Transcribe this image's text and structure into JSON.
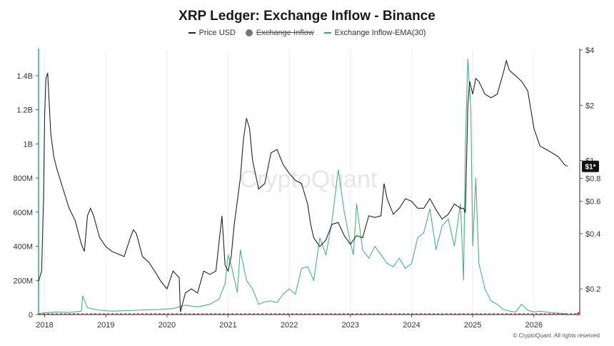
{
  "chart_data": {
    "type": "line",
    "title": "XRP Ledger: Exchange Inflow - Binance",
    "legend": [
      {
        "name": "Price USD",
        "color": "#222222",
        "marker": "line",
        "hidden": false
      },
      {
        "name": "Exchange Inflow",
        "color": "#777777",
        "marker": "dot",
        "hidden": true
      },
      {
        "name": "Exchange Inflow-EMA(30)",
        "color": "#3aa676",
        "marker": "line",
        "hidden": false
      }
    ],
    "x_ticks": [
      "2018",
      "2019",
      "2020",
      "2021",
      "2022",
      "2023",
      "2024",
      "2025",
      "2026"
    ],
    "x_range": [
      2017.9,
      2026.75
    ],
    "y_left": {
      "ticks": [
        "0",
        "200M",
        "400M",
        "600M",
        "800M",
        "1B",
        "1.2B",
        "1.4B"
      ],
      "tick_values": [
        0,
        200000000,
        400000000,
        600000000,
        800000000,
        1000000000,
        1200000000,
        1400000000
      ],
      "range": [
        0,
        1550000000
      ]
    },
    "y_right": {
      "ticks": [
        "$0.2",
        "$0.4",
        "$0.6",
        "$0.8",
        "$1",
        "$2",
        "$4"
      ],
      "tick_values": [
        0.2,
        0.4,
        0.6,
        0.8,
        1,
        2,
        4
      ],
      "range": [
        0.145,
        4
      ],
      "scale": "log"
    },
    "current_price_badge": "$1*",
    "watermark": "CryptoQuant",
    "copyright": "© CryptoQuant. All rights reserved",
    "series": [
      {
        "name": "Price USD",
        "color": "#222222",
        "x": [
          2017.9,
          2017.95,
          2017.98,
          2018.0,
          2018.02,
          2018.05,
          2018.1,
          2018.15,
          2018.2,
          2018.3,
          2018.4,
          2018.5,
          2018.6,
          2018.65,
          2018.7,
          2018.75,
          2018.8,
          2018.9,
          2019.0,
          2019.1,
          2019.2,
          2019.3,
          2019.4,
          2019.45,
          2019.5,
          2019.6,
          2019.7,
          2019.8,
          2019.9,
          2020.0,
          2020.1,
          2020.2,
          2020.22,
          2020.3,
          2020.4,
          2020.5,
          2020.6,
          2020.7,
          2020.8,
          2020.9,
          2020.95,
          2021.0,
          2021.05,
          2021.1,
          2021.2,
          2021.25,
          2021.3,
          2021.35,
          2021.4,
          2021.5,
          2021.6,
          2021.7,
          2021.8,
          2021.9,
          2022.0,
          2022.1,
          2022.2,
          2022.3,
          2022.35,
          2022.4,
          2022.5,
          2022.6,
          2022.7,
          2022.8,
          2022.9,
          2023.0,
          2023.1,
          2023.2,
          2023.3,
          2023.4,
          2023.5,
          2023.55,
          2023.6,
          2023.7,
          2023.8,
          2023.9,
          2024.0,
          2024.1,
          2024.2,
          2024.3,
          2024.4,
          2024.5,
          2024.6,
          2024.7,
          2024.8,
          2024.85,
          2024.88,
          2024.92,
          2024.95,
          2025.0,
          2025.05,
          2025.1,
          2025.2,
          2025.3,
          2025.4,
          2025.5,
          2025.55,
          2025.6,
          2025.7,
          2025.8,
          2025.9,
          2025.95,
          2026.0,
          2026.1,
          2026.2,
          2026.3,
          2026.4,
          2026.5,
          2026.55
        ],
        "values": [
          0.22,
          0.25,
          0.6,
          1.8,
          2.8,
          3.0,
          1.4,
          1.05,
          0.9,
          0.7,
          0.55,
          0.47,
          0.35,
          0.32,
          0.5,
          0.55,
          0.5,
          0.38,
          0.34,
          0.32,
          0.31,
          0.3,
          0.38,
          0.42,
          0.4,
          0.3,
          0.28,
          0.25,
          0.22,
          0.2,
          0.25,
          0.23,
          0.15,
          0.19,
          0.2,
          0.19,
          0.25,
          0.24,
          0.25,
          0.5,
          0.27,
          0.25,
          0.3,
          0.45,
          0.8,
          1.3,
          1.7,
          1.5,
          1.0,
          0.7,
          0.75,
          1.1,
          1.15,
          0.95,
          0.85,
          0.78,
          0.75,
          0.58,
          0.45,
          0.38,
          0.34,
          0.37,
          0.45,
          0.46,
          0.39,
          0.35,
          0.39,
          0.38,
          0.5,
          0.49,
          0.5,
          0.75,
          0.62,
          0.51,
          0.55,
          0.62,
          0.6,
          0.55,
          0.55,
          0.62,
          0.54,
          0.48,
          0.51,
          0.58,
          0.55,
          0.55,
          0.52,
          2.0,
          2.7,
          2.3,
          2.8,
          2.7,
          2.3,
          2.2,
          2.3,
          3.0,
          3.5,
          3.1,
          2.9,
          2.7,
          2.4,
          1.9,
          1.5,
          1.2,
          1.15,
          1.1,
          1.05,
          0.95,
          0.93
        ]
      },
      {
        "name": "Exchange Inflow-EMA(30)",
        "color": "#3aa676",
        "x": [
          2017.9,
          2018.0,
          2018.2,
          2018.4,
          2018.6,
          2018.62,
          2018.7,
          2018.9,
          2019.1,
          2019.3,
          2019.5,
          2019.7,
          2019.9,
          2020.1,
          2020.3,
          2020.5,
          2020.7,
          2020.85,
          2020.95,
          2021.0,
          2021.05,
          2021.15,
          2021.2,
          2021.3,
          2021.4,
          2021.5,
          2021.6,
          2021.7,
          2021.8,
          2021.9,
          2022.0,
          2022.1,
          2022.2,
          2022.3,
          2022.4,
          2022.5,
          2022.6,
          2022.7,
          2022.8,
          2022.9,
          2023.0,
          2023.05,
          2023.1,
          2023.2,
          2023.3,
          2023.4,
          2023.5,
          2023.6,
          2023.7,
          2023.8,
          2023.9,
          2024.0,
          2024.1,
          2024.2,
          2024.3,
          2024.4,
          2024.5,
          2024.6,
          2024.7,
          2024.8,
          2024.85,
          2024.88,
          2024.92,
          2024.97,
          2025.0,
          2025.05,
          2025.1,
          2025.2,
          2025.3,
          2025.4,
          2025.5,
          2025.6,
          2025.7,
          2025.8,
          2025.9,
          2026.0,
          2026.1,
          2026.2,
          2026.3,
          2026.4,
          2026.55
        ],
        "values": [
          5000000,
          10000000,
          15000000,
          12000000,
          20000000,
          110000000,
          40000000,
          25000000,
          20000000,
          22000000,
          25000000,
          28000000,
          30000000,
          35000000,
          55000000,
          45000000,
          60000000,
          90000000,
          180000000,
          350000000,
          290000000,
          130000000,
          380000000,
          200000000,
          150000000,
          60000000,
          75000000,
          80000000,
          70000000,
          120000000,
          150000000,
          120000000,
          270000000,
          280000000,
          200000000,
          450000000,
          350000000,
          550000000,
          850000000,
          600000000,
          420000000,
          350000000,
          650000000,
          380000000,
          330000000,
          400000000,
          350000000,
          300000000,
          280000000,
          330000000,
          270000000,
          300000000,
          450000000,
          480000000,
          620000000,
          380000000,
          520000000,
          560000000,
          400000000,
          650000000,
          200000000,
          1000000000,
          1500000000,
          1200000000,
          400000000,
          800000000,
          300000000,
          150000000,
          80000000,
          60000000,
          30000000,
          20000000,
          15000000,
          60000000,
          25000000,
          15000000,
          20000000,
          15000000,
          10000000,
          8000000,
          5000000
        ]
      }
    ]
  }
}
